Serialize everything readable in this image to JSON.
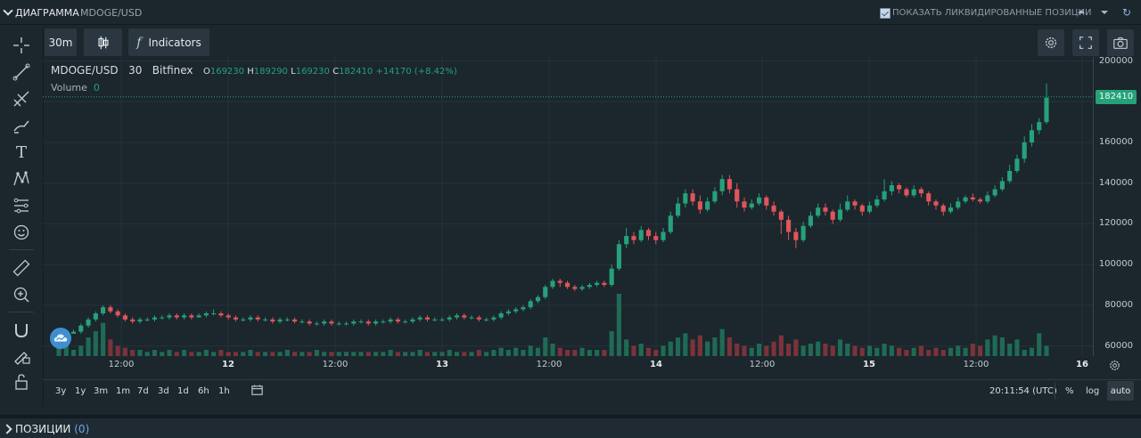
{
  "panel": {
    "title": "ДИАГРАММА",
    "subtitle": "MDOGE/USD",
    "show_liquidated_label": "ПОКАЗАТЬ ЛИКВИДИРОВАННЫЕ ПОЗИЦИИ",
    "show_liquidated_checked": true
  },
  "toolbar": {
    "interval": "30m",
    "indicators_label": "Indicators"
  },
  "legend": {
    "symbol": "MDOGE/USD",
    "interval": "30",
    "exchange": "Bitfinex",
    "o_label": "O",
    "o": "169230",
    "h_label": "H",
    "h": "189290",
    "l_label": "L",
    "l": "169230",
    "c_label": "C",
    "c": "182410",
    "change": "+14170 (+8.42%)",
    "volume_label": "Volume",
    "volume": "0"
  },
  "chart_data": {
    "type": "candlestick",
    "y_ticks": [
      "200000",
      "180000",
      "160000",
      "140000",
      "120000",
      "100000",
      "80000",
      "60000"
    ],
    "ylim": [
      55000,
      202000
    ],
    "x_ticks": [
      "12:00",
      "12",
      "12:00",
      "13",
      "12:00",
      "14",
      "12:00",
      "15",
      "12:00",
      "16"
    ],
    "last_price": "182410",
    "candles": [
      [
        65,
        65,
        66,
        64
      ],
      [
        65,
        66,
        67,
        65
      ],
      [
        66,
        67,
        68,
        66
      ],
      [
        67,
        70,
        71,
        66
      ],
      [
        70,
        73,
        74,
        69
      ],
      [
        73,
        76,
        77,
        72
      ],
      [
        76,
        79,
        80,
        75
      ],
      [
        79,
        77,
        80,
        76
      ],
      [
        77,
        75,
        78,
        74
      ],
      [
        75,
        73,
        76,
        72
      ],
      [
        73,
        72,
        74,
        71
      ],
      [
        72,
        73,
        74,
        71
      ],
      [
        73,
        73,
        74,
        72
      ],
      [
        73,
        74,
        75,
        72
      ],
      [
        74,
        74,
        75,
        73
      ],
      [
        74,
        75,
        76,
        73
      ],
      [
        75,
        74,
        76,
        73
      ],
      [
        74,
        75,
        76,
        73
      ],
      [
        75,
        74,
        76,
        73
      ],
      [
        74,
        75,
        76,
        74
      ],
      [
        75,
        76,
        77,
        74
      ],
      [
        76,
        76,
        78,
        75
      ],
      [
        76,
        75,
        77,
        74
      ],
      [
        75,
        74,
        76,
        73
      ],
      [
        74,
        73,
        75,
        72
      ],
      [
        73,
        73,
        74,
        72
      ],
      [
        73,
        74,
        75,
        72
      ],
      [
        74,
        73,
        75,
        72
      ],
      [
        73,
        73,
        74,
        72
      ],
      [
        73,
        72,
        74,
        71
      ],
      [
        72,
        73,
        74,
        71
      ],
      [
        73,
        73,
        74,
        72
      ],
      [
        73,
        72,
        74,
        71
      ],
      [
        72,
        72,
        73,
        71
      ],
      [
        72,
        71,
        73,
        70
      ],
      [
        71,
        71,
        72,
        70
      ],
      [
        71,
        72,
        73,
        70
      ],
      [
        72,
        71,
        73,
        70
      ],
      [
        71,
        71,
        72,
        70
      ],
      [
        71,
        71,
        72,
        70
      ],
      [
        71,
        72,
        73,
        70
      ],
      [
        72,
        72,
        73,
        71
      ],
      [
        72,
        71,
        73,
        70
      ],
      [
        71,
        72,
        73,
        70
      ],
      [
        72,
        72,
        73,
        71
      ],
      [
        72,
        73,
        74,
        71
      ],
      [
        73,
        72,
        74,
        71
      ],
      [
        72,
        72,
        73,
        71
      ],
      [
        72,
        73,
        74,
        71
      ],
      [
        73,
        74,
        75,
        72
      ],
      [
        74,
        73,
        75,
        72
      ],
      [
        73,
        73,
        74,
        72
      ],
      [
        73,
        73,
        74,
        72
      ],
      [
        73,
        74,
        75,
        72
      ],
      [
        74,
        75,
        76,
        73
      ],
      [
        75,
        74,
        76,
        73
      ],
      [
        74,
        74,
        75,
        73
      ],
      [
        74,
        73,
        75,
        72
      ],
      [
        73,
        73,
        74,
        72
      ],
      [
        73,
        74,
        75,
        72
      ],
      [
        74,
        76,
        77,
        73
      ],
      [
        76,
        77,
        78,
        75
      ],
      [
        77,
        78,
        79,
        76
      ],
      [
        78,
        79,
        80,
        77
      ],
      [
        79,
        82,
        83,
        78
      ],
      [
        82,
        84,
        85,
        81
      ],
      [
        84,
        89,
        90,
        83
      ],
      [
        89,
        92,
        93,
        88
      ],
      [
        92,
        91,
        93,
        89
      ],
      [
        91,
        89,
        92,
        88
      ],
      [
        89,
        88,
        90,
        87
      ],
      [
        88,
        89,
        90,
        87
      ],
      [
        89,
        90,
        91,
        88
      ],
      [
        90,
        91,
        92,
        89
      ],
      [
        91,
        90,
        92,
        89
      ],
      [
        90,
        98,
        100,
        89
      ],
      [
        98,
        110,
        112,
        97
      ],
      [
        110,
        114,
        118,
        108
      ],
      [
        114,
        112,
        116,
        110
      ],
      [
        112,
        117,
        119,
        111
      ],
      [
        117,
        114,
        118,
        112
      ],
      [
        114,
        112,
        116,
        110
      ],
      [
        112,
        116,
        118,
        111
      ],
      [
        116,
        124,
        126,
        115
      ],
      [
        124,
        130,
        133,
        123
      ],
      [
        130,
        135,
        137,
        128
      ],
      [
        135,
        131,
        137,
        129
      ],
      [
        131,
        127,
        134,
        125
      ],
      [
        127,
        131,
        133,
        126
      ],
      [
        131,
        136,
        138,
        130
      ],
      [
        136,
        142,
        144,
        134
      ],
      [
        142,
        137,
        144,
        135
      ],
      [
        137,
        131,
        140,
        128
      ],
      [
        131,
        128,
        133,
        126
      ],
      [
        128,
        130,
        132,
        127
      ],
      [
        130,
        133,
        135,
        129
      ],
      [
        133,
        129,
        134,
        127
      ],
      [
        129,
        126,
        131,
        124
      ],
      [
        126,
        122,
        127,
        115
      ],
      [
        122,
        116,
        124,
        112
      ],
      [
        116,
        112,
        118,
        108
      ],
      [
        112,
        119,
        121,
        111
      ],
      [
        119,
        124,
        126,
        118
      ],
      [
        124,
        128,
        130,
        123
      ],
      [
        128,
        126,
        130,
        124
      ],
      [
        126,
        122,
        127,
        120
      ],
      [
        122,
        127,
        130,
        121
      ],
      [
        127,
        131,
        134,
        126
      ],
      [
        131,
        129,
        132,
        127
      ],
      [
        129,
        126,
        130,
        124
      ],
      [
        126,
        129,
        131,
        125
      ],
      [
        129,
        132,
        134,
        128
      ],
      [
        132,
        136,
        142,
        131
      ],
      [
        136,
        139,
        141,
        134
      ],
      [
        139,
        137,
        140,
        135
      ],
      [
        137,
        134,
        138,
        133
      ],
      [
        134,
        137,
        139,
        133
      ],
      [
        137,
        135,
        138,
        133
      ],
      [
        135,
        131,
        136,
        129
      ],
      [
        131,
        129,
        132,
        127
      ],
      [
        129,
        126,
        130,
        124
      ],
      [
        126,
        128,
        130,
        125
      ],
      [
        128,
        131,
        133,
        127
      ],
      [
        131,
        133,
        134,
        130
      ],
      [
        133,
        132,
        135,
        131
      ],
      [
        132,
        131,
        133,
        130
      ],
      [
        131,
        134,
        136,
        130
      ],
      [
        134,
        137,
        139,
        133
      ],
      [
        137,
        141,
        143,
        136
      ],
      [
        141,
        146,
        149,
        140
      ],
      [
        146,
        152,
        154,
        145
      ],
      [
        152,
        160,
        163,
        150
      ],
      [
        160,
        166,
        169,
        158
      ],
      [
        166,
        170,
        172,
        164
      ],
      [
        170,
        182,
        189,
        169
      ]
    ],
    "volumes": [
      4,
      6,
      3,
      5,
      9,
      12,
      16,
      8,
      5,
      4,
      3,
      3,
      2,
      3,
      2,
      3,
      2,
      3,
      2,
      2,
      3,
      2,
      3,
      2,
      2,
      2,
      3,
      2,
      2,
      2,
      2,
      3,
      2,
      2,
      2,
      3,
      2,
      2,
      2,
      2,
      2,
      2,
      2,
      2,
      2,
      3,
      2,
      2,
      2,
      3,
      2,
      2,
      2,
      3,
      2,
      2,
      2,
      3,
      2,
      3,
      4,
      3,
      4,
      3,
      5,
      4,
      9,
      6,
      4,
      3,
      3,
      4,
      3,
      3,
      3,
      12,
      30,
      8,
      5,
      6,
      4,
      3,
      5,
      7,
      9,
      11,
      8,
      10,
      7,
      9,
      13,
      9,
      6,
      5,
      4,
      6,
      5,
      7,
      10,
      6,
      8,
      5,
      6,
      7,
      6,
      5,
      8,
      6,
      5,
      4,
      5,
      4,
      6,
      5,
      4,
      3,
      4,
      5,
      3,
      4,
      3,
      4,
      5,
      4,
      6,
      5,
      8,
      10,
      9,
      6,
      8,
      3,
      4,
      11,
      5
    ]
  },
  "range_buttons": [
    "3y",
    "1y",
    "3m",
    "1m",
    "7d",
    "3d",
    "1d",
    "6h",
    "1h"
  ],
  "status": {
    "time": "20:11:54 (UTC)",
    "percent": "%",
    "log": "log",
    "auto": "auto"
  },
  "positions": {
    "label": "ПОЗИЦИИ",
    "count": "(0)"
  },
  "colors": {
    "up": "#26a17a",
    "down": "#e0555a",
    "up_volume": "#1f6b55",
    "down_volume": "#7b3339",
    "background": "#1b262d",
    "grid": "#26323a"
  }
}
